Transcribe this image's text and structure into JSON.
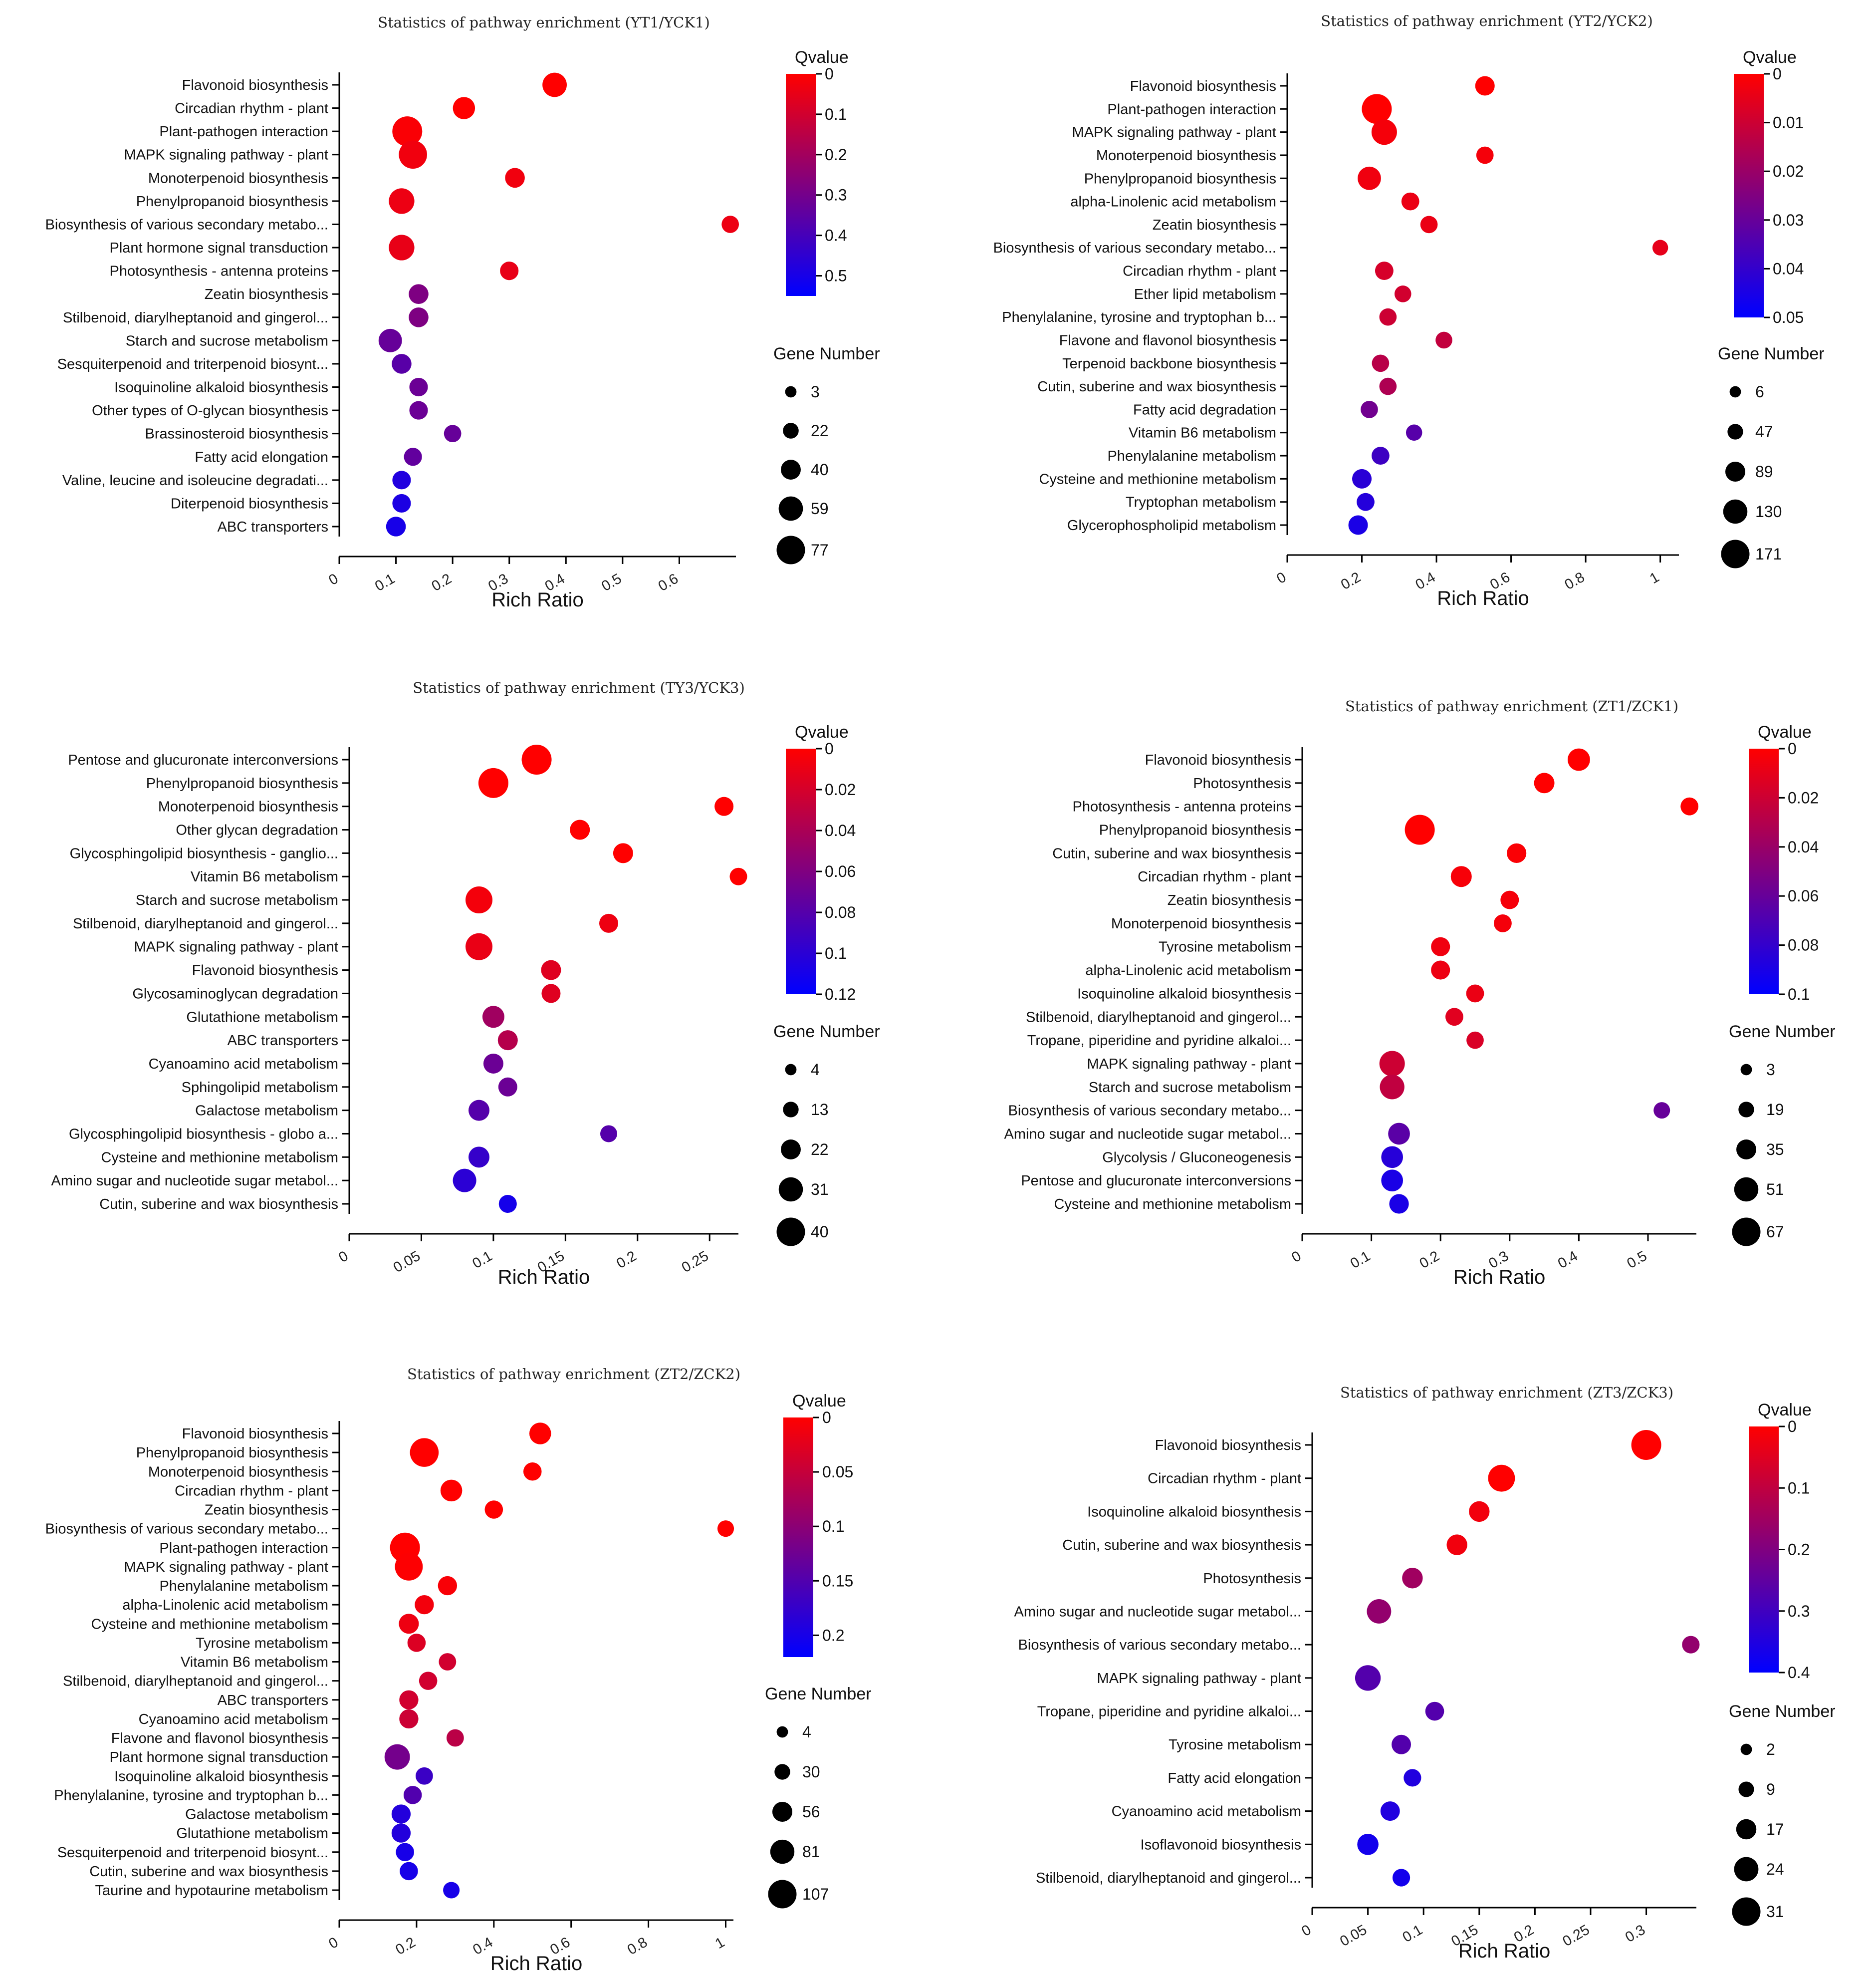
{
  "chart_data": [
    {
      "type": "scatter",
      "title": "Statistics of pathway enrichment (YT1/YCK1)",
      "xlabel": "Rich Ratio",
      "xlim": [
        0,
        0.7
      ],
      "xticks": [
        "0",
        "0.1",
        "0.2",
        "0.3",
        "0.4",
        "0.5",
        "0.6"
      ],
      "qvalue_title": "Qvalue",
      "qvalue_ticks": [
        "0",
        "0.1",
        "0.2",
        "0.3",
        "0.4",
        "0.5"
      ],
      "qmax": 0.55,
      "size_title": "Gene Number",
      "size_ticks": [
        3,
        22,
        40,
        59,
        77
      ],
      "points": [
        {
          "label": "Flavonoid biosynthesis",
          "x": 0.38,
          "q": 0.0,
          "n": 54
        },
        {
          "label": "Circadian rhythm - plant",
          "x": 0.22,
          "q": 0.0,
          "n": 45
        },
        {
          "label": "Plant-pathogen interaction",
          "x": 0.12,
          "q": 0.01,
          "n": 77
        },
        {
          "label": "MAPK signaling pathway - plant",
          "x": 0.13,
          "q": 0.03,
          "n": 70
        },
        {
          "label": "Monoterpenoid biosynthesis",
          "x": 0.31,
          "q": 0.03,
          "n": 35
        },
        {
          "label": "Phenylpropanoid biosynthesis",
          "x": 0.11,
          "q": 0.04,
          "n": 59
        },
        {
          "label": "Biosynthesis of various secondary metabo...",
          "x": 0.69,
          "q": 0.04,
          "n": 25
        },
        {
          "label": "Plant hormone signal transduction",
          "x": 0.11,
          "q": 0.05,
          "n": 59
        },
        {
          "label": "Photosynthesis - antenna proteins",
          "x": 0.3,
          "q": 0.05,
          "n": 30
        },
        {
          "label": "Zeatin biosynthesis",
          "x": 0.14,
          "q": 0.28,
          "n": 35
        },
        {
          "label": "Stilbenoid, diarylheptanoid and gingerol...",
          "x": 0.14,
          "q": 0.28,
          "n": 35
        },
        {
          "label": "Starch and sucrose metabolism",
          "x": 0.09,
          "q": 0.33,
          "n": 50
        },
        {
          "label": "Sesquiterpenoid and triterpenoid biosynt...",
          "x": 0.11,
          "q": 0.36,
          "n": 35
        },
        {
          "label": "Isoquinoline alkaloid biosynthesis",
          "x": 0.14,
          "q": 0.32,
          "n": 30
        },
        {
          "label": "Other types of O-glycan biosynthesis",
          "x": 0.14,
          "q": 0.32,
          "n": 30
        },
        {
          "label": "Brassinosteroid biosynthesis",
          "x": 0.2,
          "q": 0.33,
          "n": 25
        },
        {
          "label": "Fatty acid elongation",
          "x": 0.13,
          "q": 0.34,
          "n": 28
        },
        {
          "label": "Valine, leucine and isoleucine degradati...",
          "x": 0.11,
          "q": 0.48,
          "n": 30
        },
        {
          "label": "Diterpenoid biosynthesis",
          "x": 0.11,
          "q": 0.49,
          "n": 30
        },
        {
          "label": "ABC transporters",
          "x": 0.1,
          "q": 0.5,
          "n": 35
        }
      ]
    },
    {
      "type": "scatter",
      "title": "Statistics of pathway enrichment (YT2/YCK2)",
      "xlabel": "Rich Ratio",
      "xlim": [
        0,
        1.05
      ],
      "xticks": [
        "0",
        "0.2",
        "0.4",
        "0.6",
        "0.8",
        "1"
      ],
      "qvalue_title": "Qvalue",
      "qvalue_ticks": [
        "0",
        "0.01",
        "0.02",
        "0.03",
        "0.04",
        "0.05"
      ],
      "qmax": 0.05,
      "size_title": "Gene Number",
      "size_ticks": [
        6,
        47,
        89,
        130,
        171
      ],
      "points": [
        {
          "label": "Flavonoid biosynthesis",
          "x": 0.53,
          "q": 0.0,
          "n": 75
        },
        {
          "label": "Plant-pathogen interaction",
          "x": 0.24,
          "q": 0.0,
          "n": 171
        },
        {
          "label": "MAPK signaling pathway - plant",
          "x": 0.26,
          "q": 0.002,
          "n": 130
        },
        {
          "label": "Monoterpenoid biosynthesis",
          "x": 0.53,
          "q": 0.002,
          "n": 55
        },
        {
          "label": "Phenylpropanoid biosynthesis",
          "x": 0.22,
          "q": 0.003,
          "n": 110
        },
        {
          "label": "alpha-Linolenic acid metabolism",
          "x": 0.33,
          "q": 0.004,
          "n": 60
        },
        {
          "label": "Zeatin biosynthesis",
          "x": 0.38,
          "q": 0.004,
          "n": 55
        },
        {
          "label": "Biosynthesis of various secondary metabo...",
          "x": 1.0,
          "q": 0.005,
          "n": 40
        },
        {
          "label": "Circadian rhythm - plant",
          "x": 0.26,
          "q": 0.008,
          "n": 65
        },
        {
          "label": "Ether lipid metabolism",
          "x": 0.31,
          "q": 0.009,
          "n": 50
        },
        {
          "label": "Phenylalanine, tyrosine and tryptophan b...",
          "x": 0.27,
          "q": 0.01,
          "n": 55
        },
        {
          "label": "Flavone and flavonol biosynthesis",
          "x": 0.42,
          "q": 0.012,
          "n": 50
        },
        {
          "label": "Terpenoid backbone biosynthesis",
          "x": 0.25,
          "q": 0.014,
          "n": 55
        },
        {
          "label": "Cutin, suberine and wax biosynthesis",
          "x": 0.27,
          "q": 0.016,
          "n": 55
        },
        {
          "label": "Fatty acid degradation",
          "x": 0.22,
          "q": 0.028,
          "n": 55
        },
        {
          "label": "Vitamin B6 metabolism",
          "x": 0.34,
          "q": 0.033,
          "n": 45
        },
        {
          "label": "Phenylalanine metabolism",
          "x": 0.25,
          "q": 0.038,
          "n": 60
        },
        {
          "label": "Cysteine and methionine metabolism",
          "x": 0.2,
          "q": 0.042,
          "n": 75
        },
        {
          "label": "Tryptophan metabolism",
          "x": 0.21,
          "q": 0.043,
          "n": 60
        },
        {
          "label": "Glycerophospholipid metabolism",
          "x": 0.19,
          "q": 0.045,
          "n": 75
        }
      ]
    },
    {
      "type": "scatter",
      "title": "Statistics of pathway enrichment (TY3/YCK3)",
      "xlabel": "Rich Ratio",
      "xlim": [
        0,
        0.27
      ],
      "xticks": [
        "0",
        "0.05",
        "0.1",
        "0.15",
        "0.2",
        "0.25"
      ],
      "qvalue_title": "Qvalue",
      "qvalue_ticks": [
        "0",
        "0.02",
        "0.04",
        "0.06",
        "0.08",
        "0.1",
        "0.12"
      ],
      "qmax": 0.12,
      "size_title": "Gene Number",
      "size_ticks": [
        4,
        13,
        22,
        31,
        40
      ],
      "points": [
        {
          "label": "Pentose and glucuronate interconversions",
          "x": 0.13,
          "q": 0.0,
          "n": 40
        },
        {
          "label": "Phenylpropanoid biosynthesis",
          "x": 0.1,
          "q": 0.0,
          "n": 40
        },
        {
          "label": "Monoterpenoid biosynthesis",
          "x": 0.26,
          "q": 0.0,
          "n": 18
        },
        {
          "label": "Other glycan degradation",
          "x": 0.16,
          "q": 0.0,
          "n": 20
        },
        {
          "label": "Glycosphingolipid biosynthesis - ganglio...",
          "x": 0.19,
          "q": 0.0,
          "n": 20
        },
        {
          "label": "Vitamin B6 metabolism",
          "x": 0.27,
          "q": 0.0,
          "n": 15
        },
        {
          "label": "Starch and sucrose metabolism",
          "x": 0.09,
          "q": 0.005,
          "n": 34
        },
        {
          "label": "Stilbenoid, diarylheptanoid and gingerol...",
          "x": 0.18,
          "q": 0.008,
          "n": 18
        },
        {
          "label": "MAPK signaling pathway - plant",
          "x": 0.09,
          "q": 0.01,
          "n": 34
        },
        {
          "label": "Flavonoid biosynthesis",
          "x": 0.14,
          "q": 0.015,
          "n": 20
        },
        {
          "label": "Glycosaminoglycan degradation",
          "x": 0.14,
          "q": 0.015,
          "n": 18
        },
        {
          "label": "Glutathione metabolism",
          "x": 0.1,
          "q": 0.045,
          "n": 24
        },
        {
          "label": "ABC transporters",
          "x": 0.11,
          "q": 0.035,
          "n": 20
        },
        {
          "label": "Cyanoamino acid metabolism",
          "x": 0.1,
          "q": 0.07,
          "n": 20
        },
        {
          "label": "Sphingolipid metabolism",
          "x": 0.11,
          "q": 0.07,
          "n": 18
        },
        {
          "label": "Galactose metabolism",
          "x": 0.09,
          "q": 0.08,
          "n": 22
        },
        {
          "label": "Glycosphingolipid biosynthesis - globo a...",
          "x": 0.18,
          "q": 0.08,
          "n": 14
        },
        {
          "label": "Cysteine and methionine metabolism",
          "x": 0.09,
          "q": 0.095,
          "n": 22
        },
        {
          "label": "Amino sugar and nucleotide sugar metabol...",
          "x": 0.08,
          "q": 0.1,
          "n": 27
        },
        {
          "label": "Cutin, suberine and wax biosynthesis",
          "x": 0.11,
          "q": 0.11,
          "n": 16
        }
      ]
    },
    {
      "type": "scatter",
      "title": "Statistics of pathway enrichment (ZT1/ZCK1)",
      "xlabel": "Rich Ratio",
      "xlim": [
        0,
        0.57
      ],
      "xticks": [
        "0",
        "0.1",
        "0.2",
        "0.3",
        "0.4",
        "0.5"
      ],
      "qvalue_title": "Qvalue",
      "qvalue_ticks": [
        "0",
        "0.02",
        "0.04",
        "0.06",
        "0.08",
        "0.1"
      ],
      "qmax": 0.1,
      "size_title": "Gene Number",
      "size_ticks": [
        3,
        19,
        35,
        51,
        67
      ],
      "points": [
        {
          "label": "Flavonoid biosynthesis",
          "x": 0.4,
          "q": 0.0,
          "n": 40
        },
        {
          "label": "Photosynthesis",
          "x": 0.35,
          "q": 0.0,
          "n": 33
        },
        {
          "label": "Photosynthesis - antenna proteins",
          "x": 0.56,
          "q": 0.0,
          "n": 24
        },
        {
          "label": "Phenylpropanoid biosynthesis",
          "x": 0.17,
          "q": 0.0,
          "n": 67
        },
        {
          "label": "Cutin, suberine and wax biosynthesis",
          "x": 0.31,
          "q": 0.002,
          "n": 30
        },
        {
          "label": "Circadian rhythm - plant",
          "x": 0.23,
          "q": 0.003,
          "n": 35
        },
        {
          "label": "Zeatin biosynthesis",
          "x": 0.3,
          "q": 0.004,
          "n": 26
        },
        {
          "label": "Monoterpenoid biosynthesis",
          "x": 0.29,
          "q": 0.004,
          "n": 24
        },
        {
          "label": "Tyrosine metabolism",
          "x": 0.2,
          "q": 0.006,
          "n": 28
        },
        {
          "label": "alpha-Linolenic acid metabolism",
          "x": 0.2,
          "q": 0.007,
          "n": 28
        },
        {
          "label": "Isoquinoline alkaloid biosynthesis",
          "x": 0.25,
          "q": 0.008,
          "n": 24
        },
        {
          "label": "Stilbenoid, diarylheptanoid and gingerol...",
          "x": 0.22,
          "q": 0.012,
          "n": 24
        },
        {
          "label": "Tropane, piperidine and pyridine alkaloi...",
          "x": 0.25,
          "q": 0.015,
          "n": 22
        },
        {
          "label": "MAPK signaling pathway - plant",
          "x": 0.13,
          "q": 0.02,
          "n": 51
        },
        {
          "label": "Starch and sucrose metabolism",
          "x": 0.13,
          "q": 0.025,
          "n": 48
        },
        {
          "label": "Biosynthesis of various secondary metabo...",
          "x": 0.52,
          "q": 0.06,
          "n": 19
        },
        {
          "label": "Amino sugar and nucleotide sugar metabol...",
          "x": 0.14,
          "q": 0.065,
          "n": 38
        },
        {
          "label": "Glycolysis / Gluconeogenesis",
          "x": 0.13,
          "q": 0.085,
          "n": 38
        },
        {
          "label": "Pentose and glucuronate interconversions",
          "x": 0.13,
          "q": 0.09,
          "n": 38
        },
        {
          "label": "Cysteine and methionine metabolism",
          "x": 0.14,
          "q": 0.09,
          "n": 30
        }
      ]
    },
    {
      "type": "scatter",
      "title": "Statistics of pathway enrichment (ZT2/ZCK2)",
      "xlabel": "Rich Ratio",
      "xlim": [
        0,
        1.02
      ],
      "xticks": [
        "0",
        "0.2",
        "0.4",
        "0.6",
        "0.8",
        "1"
      ],
      "qvalue_title": "Qvalue",
      "qvalue_ticks": [
        "0",
        "0.05",
        "0.1",
        "0.15",
        "0.2"
      ],
      "qmax": 0.22,
      "size_title": "Gene Number",
      "size_ticks": [
        4,
        30,
        56,
        81,
        107
      ],
      "points": [
        {
          "label": "Flavonoid biosynthesis",
          "x": 0.52,
          "q": 0.0,
          "n": 60
        },
        {
          "label": "Phenylpropanoid biosynthesis",
          "x": 0.22,
          "q": 0.0,
          "n": 100
        },
        {
          "label": "Monoterpenoid biosynthesis",
          "x": 0.5,
          "q": 0.0,
          "n": 40
        },
        {
          "label": "Circadian rhythm - plant",
          "x": 0.29,
          "q": 0.0,
          "n": 60
        },
        {
          "label": "Zeatin biosynthesis",
          "x": 0.4,
          "q": 0.0,
          "n": 40
        },
        {
          "label": "Biosynthesis of various secondary metabo...",
          "x": 1.0,
          "q": 0.0,
          "n": 30
        },
        {
          "label": "Plant-pathogen interaction",
          "x": 0.17,
          "q": 0.0,
          "n": 107
        },
        {
          "label": "MAPK signaling pathway - plant",
          "x": 0.18,
          "q": 0.002,
          "n": 95
        },
        {
          "label": "Phenylalanine metabolism",
          "x": 0.28,
          "q": 0.005,
          "n": 45
        },
        {
          "label": "alpha-Linolenic acid metabolism",
          "x": 0.22,
          "q": 0.01,
          "n": 45
        },
        {
          "label": "Cysteine and methionine metabolism",
          "x": 0.18,
          "q": 0.015,
          "n": 50
        },
        {
          "label": "Tyrosine metabolism",
          "x": 0.2,
          "q": 0.03,
          "n": 40
        },
        {
          "label": "Vitamin B6 metabolism",
          "x": 0.28,
          "q": 0.04,
          "n": 35
        },
        {
          "label": "Stilbenoid, diarylheptanoid and gingerol...",
          "x": 0.23,
          "q": 0.04,
          "n": 40
        },
        {
          "label": "ABC transporters",
          "x": 0.18,
          "q": 0.04,
          "n": 45
        },
        {
          "label": "Cyanoamino acid metabolism",
          "x": 0.18,
          "q": 0.045,
          "n": 45
        },
        {
          "label": "Flavone and flavonol biosynthesis",
          "x": 0.3,
          "q": 0.06,
          "n": 35
        },
        {
          "label": "Plant hormone signal transduction",
          "x": 0.15,
          "q": 0.12,
          "n": 81
        },
        {
          "label": "Isoquinoline alkaloid biosynthesis",
          "x": 0.22,
          "q": 0.17,
          "n": 35
        },
        {
          "label": "Phenylalanine, tyrosine and tryptophan b...",
          "x": 0.19,
          "q": 0.15,
          "n": 40
        },
        {
          "label": "Galactose metabolism",
          "x": 0.16,
          "q": 0.19,
          "n": 45
        },
        {
          "label": "Glutathione metabolism",
          "x": 0.16,
          "q": 0.19,
          "n": 45
        },
        {
          "label": "Sesquiterpenoid and triterpenoid biosynt...",
          "x": 0.17,
          "q": 0.2,
          "n": 40
        },
        {
          "label": "Cutin, suberine and wax biosynthesis",
          "x": 0.18,
          "q": 0.2,
          "n": 40
        },
        {
          "label": "Taurine and hypotaurine metabolism",
          "x": 0.29,
          "q": 0.2,
          "n": 30
        }
      ]
    },
    {
      "type": "scatter",
      "title": "Statistics of pathway enrichment (ZT3/ZCK3)",
      "xlabel": "Rich Ratio",
      "xlim": [
        0,
        0.345
      ],
      "xticks": [
        "0",
        "0.05",
        "0.1",
        "0.15",
        "0.2",
        "0.25",
        "0.3"
      ],
      "qvalue_title": "Qvalue",
      "qvalue_ticks": [
        "0",
        "0.1",
        "0.2",
        "0.3",
        "0.4"
      ],
      "qmax": 0.4,
      "size_title": "Gene Number",
      "size_ticks": [
        2,
        9,
        17,
        24,
        31
      ],
      "points": [
        {
          "label": "Flavonoid biosynthesis",
          "x": 0.3,
          "q": 0.0,
          "n": 31
        },
        {
          "label": "Circadian rhythm - plant",
          "x": 0.17,
          "q": 0.0,
          "n": 26
        },
        {
          "label": "Isoquinoline alkaloid biosynthesis",
          "x": 0.15,
          "q": 0.02,
          "n": 16
        },
        {
          "label": "Cutin, suberine and wax biosynthesis",
          "x": 0.13,
          "q": 0.02,
          "n": 16
        },
        {
          "label": "Photosynthesis",
          "x": 0.09,
          "q": 0.15,
          "n": 16
        },
        {
          "label": "Amino sugar and nucleotide sugar metabol...",
          "x": 0.06,
          "q": 0.17,
          "n": 22
        },
        {
          "label": "Biosynthesis of various secondary metabo...",
          "x": 0.34,
          "q": 0.17,
          "n": 11
        },
        {
          "label": "MAPK signaling pathway - plant",
          "x": 0.05,
          "q": 0.27,
          "n": 24
        },
        {
          "label": "Tropane, piperidine and pyridine alkaloi...",
          "x": 0.11,
          "q": 0.27,
          "n": 13
        },
        {
          "label": "Tyrosine metabolism",
          "x": 0.08,
          "q": 0.27,
          "n": 14
        },
        {
          "label": "Fatty acid elongation",
          "x": 0.09,
          "q": 0.35,
          "n": 11
        },
        {
          "label": "Cyanoamino acid metabolism",
          "x": 0.07,
          "q": 0.35,
          "n": 14
        },
        {
          "label": "Isoflavonoid biosynthesis",
          "x": 0.05,
          "q": 0.37,
          "n": 17
        },
        {
          "label": "Stilbenoid, diarylheptanoid and gingerol...",
          "x": 0.08,
          "q": 0.37,
          "n": 11
        }
      ]
    }
  ]
}
